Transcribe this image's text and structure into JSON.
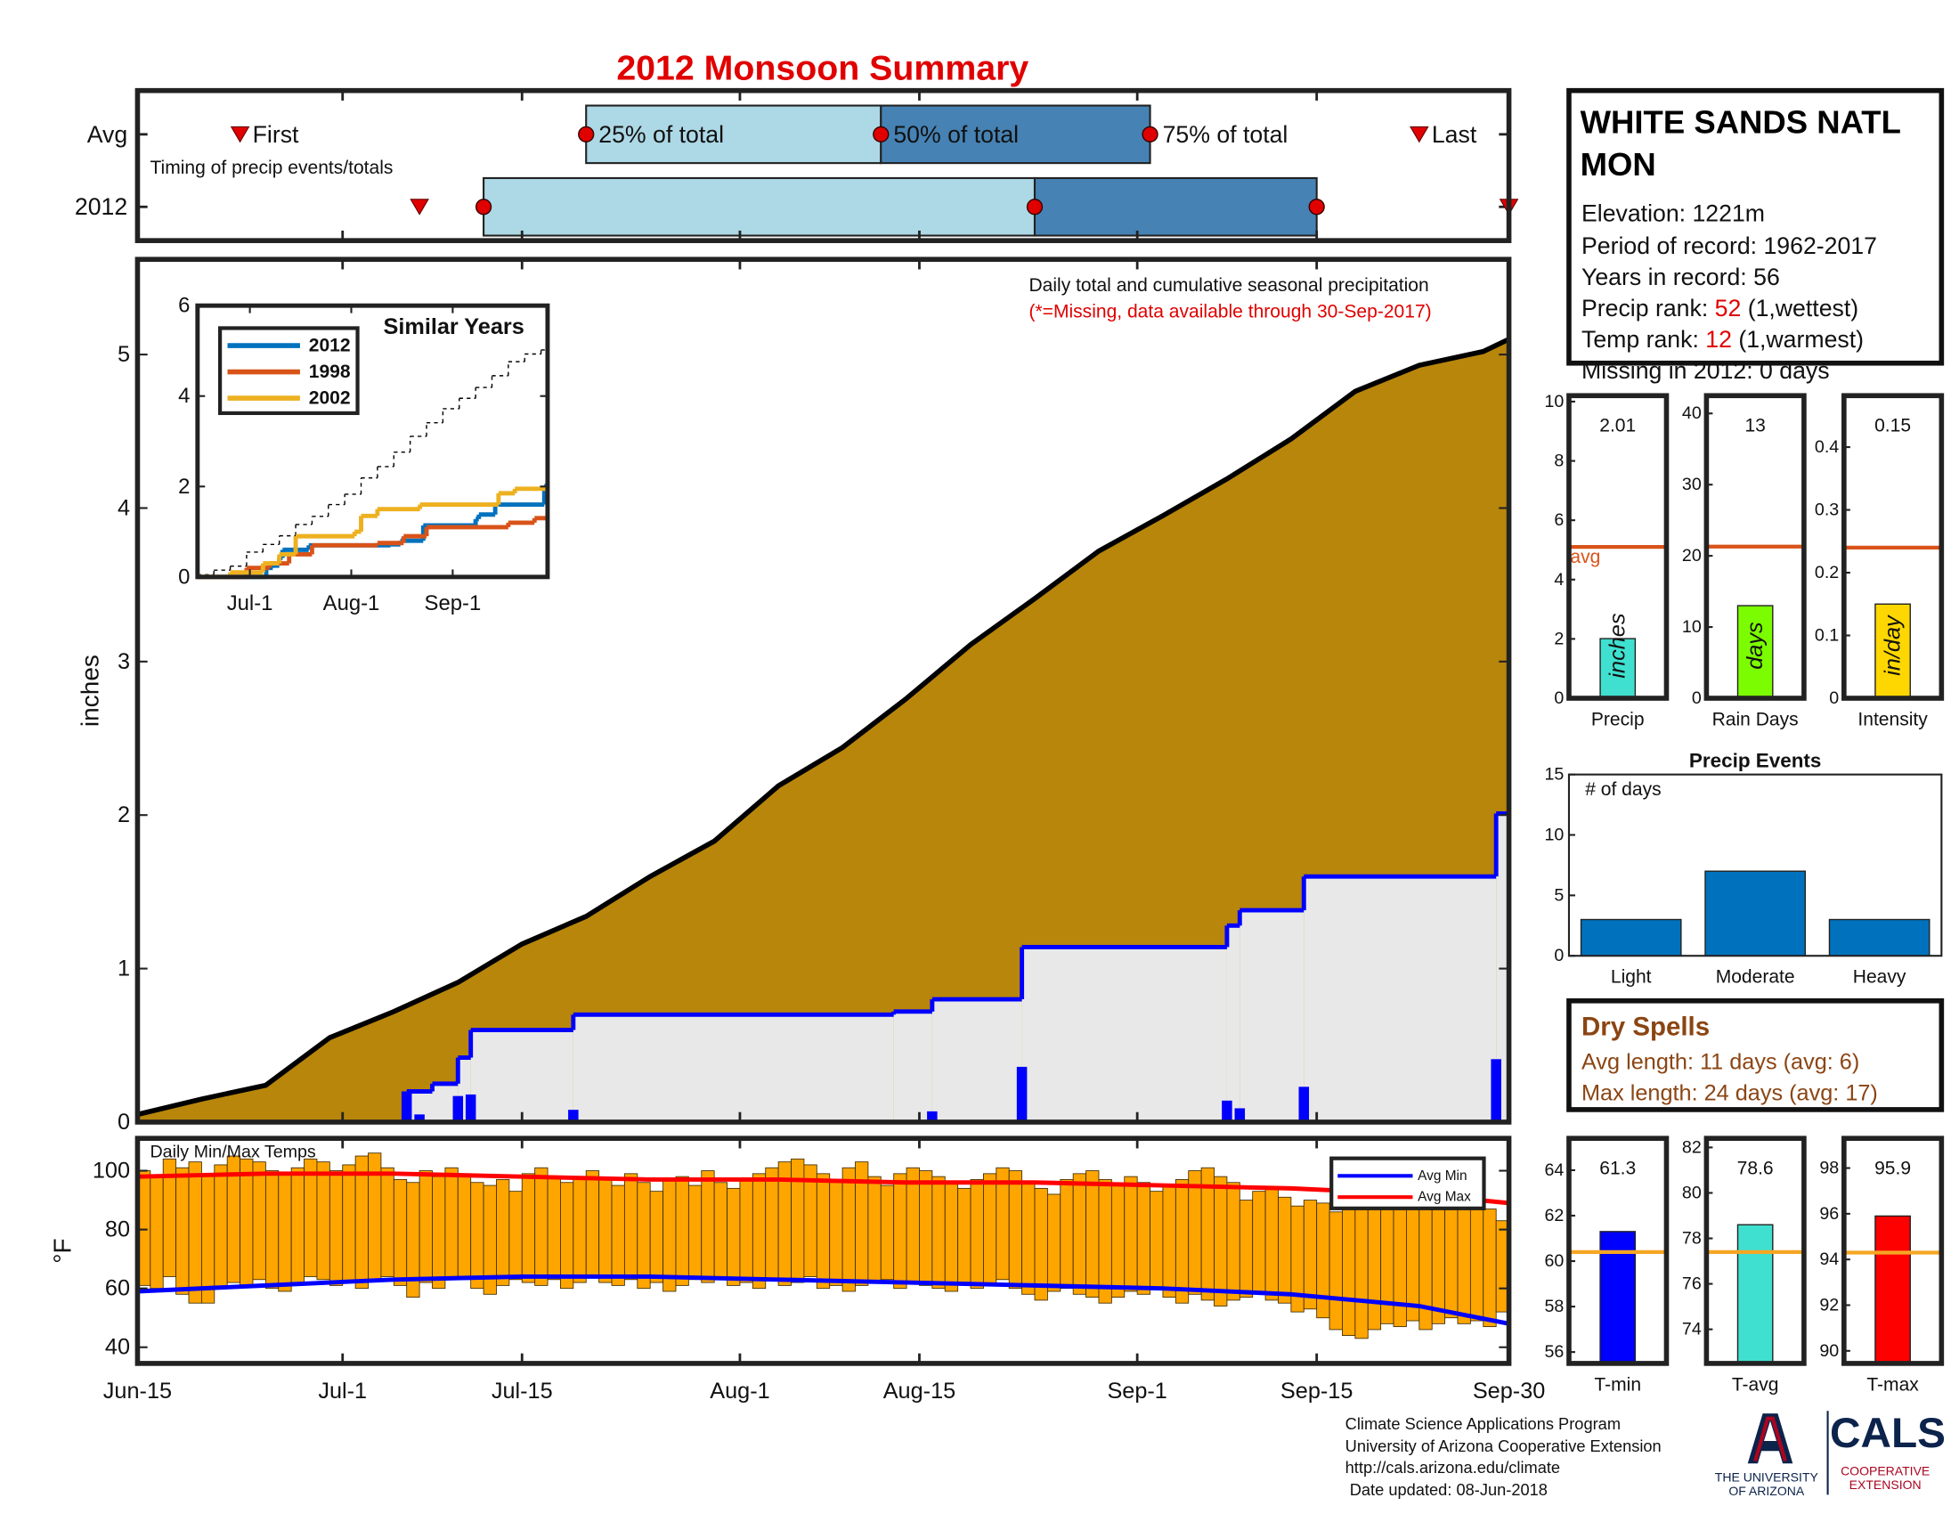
{
  "chart_data": [
    {
      "type": "timing",
      "title": "2012 Monsoon Summary",
      "note": "Timing of precip events/totals",
      "labels": [
        "First",
        "25% of total",
        "50% of total",
        "75% of total",
        "Last"
      ],
      "series": [
        {
          "name": "Avg",
          "values": [
            8,
            35,
            58,
            79,
            100
          ]
        },
        {
          "name": "2012",
          "values": [
            22,
            27,
            70,
            92,
            107
          ]
        }
      ],
      "xlim": [
        0,
        107
      ],
      "colors": [
        "#add8e6",
        "#4682b4"
      ],
      "marker_color": "#e00000"
    },
    {
      "type": "precip",
      "ylabel": "inches",
      "annotation": "Daily total and cumulative seasonal precipitation",
      "missing_note": "(*=Missing, data available through 30-Sep-2017)",
      "xlim": [
        0,
        107
      ],
      "ylim": [
        0,
        5.62
      ],
      "yticks": [
        0,
        1,
        2,
        3,
        4,
        5
      ],
      "series": [
        {
          "style": "area",
          "color": "#b8860b",
          "x": [
            0,
            5,
            10,
            15,
            20,
            25,
            30,
            35,
            40,
            45,
            50,
            55,
            60,
            65,
            70,
            75,
            80,
            85,
            90,
            95,
            100,
            105,
            107
          ],
          "values": [
            0.05,
            0.15,
            0.24,
            0.55,
            0.72,
            0.91,
            1.16,
            1.34,
            1.6,
            1.83,
            2.19,
            2.44,
            2.76,
            3.11,
            3.41,
            3.72,
            3.95,
            4.19,
            4.45,
            4.76,
            4.93,
            5.02,
            5.1
          ]
        },
        {
          "style": "step",
          "color": "#0000ff",
          "fill": "#e8e8e8",
          "x": [
            0,
            21,
            23,
            25,
            26,
            34,
            59,
            62,
            69,
            85,
            86,
            91,
            106
          ],
          "values": [
            0,
            0.2,
            0.25,
            0.42,
            0.6,
            0.7,
            0.72,
            0.8,
            1.14,
            1.28,
            1.38,
            1.6,
            2.01
          ]
        },
        {
          "style": "bar",
          "color": "#0000ff",
          "x": [
            21,
            22,
            25,
            26,
            34,
            59,
            62,
            69,
            85,
            86,
            91,
            106
          ],
          "values": [
            0.2,
            0.05,
            0.17,
            0.18,
            0.08,
            0.01,
            0.07,
            0.36,
            0.14,
            0.09,
            0.23,
            0.41
          ]
        }
      ]
    },
    {
      "type": "line",
      "title": "Similar Years",
      "xlim": [
        0,
        107
      ],
      "xticks": [
        {
          "value": 16,
          "label": "Jul-1"
        },
        {
          "value": 47,
          "label": "Aug-1"
        },
        {
          "value": 78,
          "label": "Sep-1"
        }
      ],
      "ylim": [
        0,
        6
      ],
      "yticks": [
        0,
        2,
        4,
        6
      ],
      "series": [
        {
          "style": "dashed",
          "color": "#000000",
          "x": [
            0,
            5,
            10,
            15,
            20,
            25,
            30,
            35,
            40,
            45,
            50,
            55,
            60,
            65,
            70,
            75,
            80,
            85,
            90,
            95,
            100,
            105,
            107
          ],
          "values": [
            0.05,
            0.15,
            0.24,
            0.55,
            0.72,
            0.91,
            1.16,
            1.34,
            1.6,
            1.83,
            2.19,
            2.44,
            2.76,
            3.11,
            3.41,
            3.72,
            3.95,
            4.19,
            4.45,
            4.76,
            4.93,
            5.02,
            5.1
          ]
        },
        {
          "name": "2012",
          "color": "#0072bd",
          "x": [
            0,
            21,
            23,
            25,
            26,
            34,
            59,
            62,
            69,
            85,
            86,
            91,
            106
          ],
          "values": [
            0,
            0.2,
            0.25,
            0.42,
            0.6,
            0.7,
            0.72,
            0.8,
            1.14,
            1.28,
            1.38,
            1.6,
            2.01
          ]
        },
        {
          "name": "1998",
          "color": "#d95319",
          "x": [
            0,
            15,
            22,
            28,
            35,
            55,
            63,
            70,
            95,
            103
          ],
          "values": [
            0,
            0.2,
            0.3,
            0.5,
            0.7,
            0.75,
            0.9,
            1.1,
            1.2,
            1.3
          ]
        },
        {
          "name": "2002",
          "color": "#edb120",
          "x": [
            0,
            10,
            20,
            25,
            30,
            48,
            50,
            55,
            68,
            92,
            97
          ],
          "values": [
            0,
            0.1,
            0.3,
            0.5,
            0.9,
            1.0,
            1.35,
            1.5,
            1.6,
            1.85,
            1.95
          ]
        }
      ]
    },
    {
      "type": "range_bar",
      "title": "Daily Min/Max Temps",
      "ylabel": "°F",
      "xlim": [
        0,
        107
      ],
      "xticks": [
        {
          "value": 0,
          "label": "Jun-15"
        },
        {
          "value": 16,
          "label": "Jul-1"
        },
        {
          "value": 30,
          "label": "Jul-15"
        },
        {
          "value": 47,
          "label": "Aug-1"
        },
        {
          "value": 61,
          "label": "Aug-15"
        },
        {
          "value": 78,
          "label": "Sep-1"
        },
        {
          "value": 92,
          "label": "Sep-15"
        },
        {
          "value": 107,
          "label": "Sep-30"
        }
      ],
      "ylim": [
        34.5,
        111
      ],
      "yticks": [
        40,
        60,
        80,
        100
      ],
      "color": "#ffa500",
      "x": [
        0,
        1,
        2,
        3,
        4,
        5,
        6,
        7,
        8,
        9,
        10,
        11,
        12,
        13,
        14,
        15,
        16,
        17,
        18,
        19,
        20,
        21,
        22,
        23,
        24,
        25,
        26,
        27,
        28,
        29,
        30,
        31,
        32,
        33,
        34,
        35,
        36,
        37,
        38,
        39,
        40,
        41,
        42,
        43,
        44,
        45,
        46,
        47,
        48,
        49,
        50,
        51,
        52,
        53,
        54,
        55,
        56,
        57,
        58,
        59,
        60,
        61,
        62,
        63,
        64,
        65,
        66,
        67,
        68,
        69,
        70,
        71,
        72,
        73,
        74,
        75,
        76,
        77,
        78,
        79,
        80,
        81,
        82,
        83,
        84,
        85,
        86,
        87,
        88,
        89,
        90,
        91,
        92,
        93,
        94,
        95,
        96,
        97,
        98,
        99,
        100,
        101,
        102,
        103,
        104,
        105,
        106
      ],
      "max": [
        100,
        98,
        104,
        101,
        103,
        99,
        102,
        105,
        104,
        103,
        100,
        99,
        101,
        104,
        103,
        100,
        102,
        105,
        106,
        101,
        97,
        96,
        100,
        98,
        101,
        99,
        96,
        95,
        97,
        93,
        99,
        101,
        98,
        96,
        98,
        100,
        97,
        95,
        99,
        96,
        93,
        97,
        98,
        95,
        100,
        96,
        94,
        97,
        99,
        101,
        103,
        104,
        102,
        99,
        97,
        101,
        103,
        98,
        95,
        99,
        101,
        100,
        98,
        96,
        94,
        97,
        99,
        101,
        100,
        96,
        94,
        92,
        97,
        99,
        100,
        97,
        95,
        98,
        96,
        93,
        95,
        97,
        100,
        101,
        98,
        96,
        90,
        93,
        94,
        91,
        88,
        90,
        89,
        86,
        91,
        93,
        92,
        90,
        88,
        87,
        89,
        90,
        91,
        88,
        89,
        87,
        83
      ],
      "min": [
        61,
        60,
        64,
        58,
        55,
        55,
        60,
        62,
        61,
        63,
        60,
        59,
        62,
        64,
        63,
        61,
        62,
        60,
        63,
        64,
        61,
        57,
        62,
        60,
        64,
        63,
        60,
        58,
        61,
        63,
        62,
        61,
        63,
        60,
        62,
        64,
        62,
        61,
        63,
        60,
        62,
        59,
        61,
        63,
        62,
        64,
        61,
        62,
        60,
        63,
        61,
        62,
        64,
        60,
        61,
        59,
        61,
        62,
        63,
        60,
        62,
        61,
        60,
        59,
        62,
        60,
        61,
        63,
        60,
        58,
        56,
        59,
        60,
        58,
        57,
        55,
        57,
        59,
        58,
        60,
        57,
        55,
        58,
        56,
        54,
        56,
        57,
        59,
        56,
        55,
        52,
        53,
        50,
        46,
        44,
        43,
        46,
        48,
        47,
        49,
        46,
        48,
        50,
        48,
        49,
        47,
        52
      ],
      "series": [
        {
          "name": "Avg Min",
          "color": "#0000ff",
          "x": [
            0,
            10,
            20,
            30,
            40,
            50,
            60,
            70,
            80,
            90,
            100,
            107
          ],
          "values": [
            59,
            61,
            63,
            64,
            64,
            63,
            62,
            61,
            60,
            58,
            54,
            48
          ]
        },
        {
          "name": "Avg Max",
          "color": "#ff0000",
          "x": [
            0,
            10,
            20,
            30,
            40,
            50,
            60,
            70,
            80,
            90,
            100,
            107
          ],
          "values": [
            98,
            99,
            99,
            98,
            97,
            97,
            96,
            96,
            95,
            94,
            92,
            89
          ]
        }
      ]
    },
    {
      "type": "bar",
      "categories": [
        "Precip"
      ],
      "values": [
        2.01
      ],
      "unit": "inches",
      "avg": 5.1,
      "avg_label": "avg",
      "ylim": [
        0,
        10.2
      ],
      "yticks": [
        0,
        2,
        4,
        6,
        8,
        10
      ],
      "color": "#40e0d0",
      "avg_color": "#d95319"
    },
    {
      "type": "bar",
      "categories": [
        "Rain Days"
      ],
      "values": [
        13
      ],
      "unit": "days",
      "avg": 21.3,
      "ylim": [
        0,
        42.5
      ],
      "yticks": [
        0,
        10,
        20,
        30,
        40
      ],
      "color": "#7cfc00",
      "avg_color": "#d95319"
    },
    {
      "type": "bar",
      "categories": [
        "Intensity"
      ],
      "values": [
        0.15
      ],
      "unit": "in/day",
      "avg": 0.24,
      "ylim": [
        0,
        0.482
      ],
      "yticks": [
        0,
        0.1,
        0.2,
        0.3,
        0.4
      ],
      "color": "#ffd700",
      "avg_color": "#d95319"
    },
    {
      "type": "bar",
      "title": "Precip Events",
      "annotation": "# of days",
      "categories": [
        "Light",
        "Moderate",
        "Heavy"
      ],
      "values": [
        3,
        7,
        3
      ],
      "ylim": [
        0,
        15
      ],
      "yticks": [
        0,
        5,
        10,
        15
      ],
      "color": "#0072bd"
    },
    {
      "type": "bar",
      "categories": [
        "T-min"
      ],
      "values": [
        61.3
      ],
      "avg": 60.4,
      "ylim": [
        55.5,
        65.4
      ],
      "yticks": [
        56,
        58,
        60,
        62,
        64
      ],
      "color": "#0000ff",
      "avg_color": "#f5a623"
    },
    {
      "type": "bar",
      "categories": [
        "T-avg"
      ],
      "values": [
        78.6
      ],
      "avg": 77.4,
      "ylim": [
        72.5,
        82.4
      ],
      "yticks": [
        74,
        76,
        78,
        80,
        82
      ],
      "color": "#40e0d0",
      "avg_color": "#f5a623"
    },
    {
      "type": "bar",
      "categories": [
        "T-max"
      ],
      "values": [
        95.9
      ],
      "avg": 94.3,
      "ylim": [
        89.45,
        99.3
      ],
      "yticks": [
        90,
        92,
        94,
        96,
        98
      ],
      "color": "#ff0000",
      "avg_color": "#f5a623"
    }
  ],
  "station": {
    "name": "WHITE SANDS NATL MON",
    "lines": [
      "Elevation: 1221m",
      "Period of record: 1962-2017",
      "Years in record: 56"
    ],
    "precip_rank": {
      "label": "Precip rank:",
      "value": 52,
      "note": "(1,wettest)"
    },
    "temp_rank": {
      "label": "Temp rank:",
      "value": 12,
      "note": "(1,warmest)"
    },
    "missing": "Missing in 2012: 0 days"
  },
  "dry_spells": {
    "title": "Dry Spells",
    "lines": [
      "Avg length: 11 days (avg: 6)",
      "Max length: 24 days (avg: 17)"
    ]
  },
  "footer": {
    "lines": [
      "Climate Science Applications Program",
      "University of Arizona Cooperative Extension",
      "http://cals.arizona.edu/climate",
      " Date updated: 08-Jun-2018"
    ],
    "university": [
      "THE UNIVERSITY",
      "OF ARIZONA"
    ],
    "cals": "CALS",
    "extension": [
      "COOPERATIVE",
      "EXTENSION"
    ]
  }
}
